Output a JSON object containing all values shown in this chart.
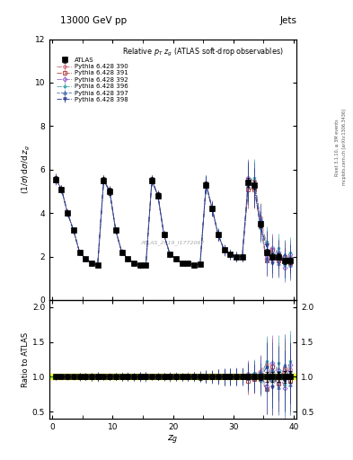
{
  "title_top": "13000 GeV pp",
  "title_right": "Jets",
  "plot_title": "Relative $p_{T}$ $z_{g}$ (ATLAS soft-drop observables)",
  "ylabel_main": "(1/σ) dσ/d z_g",
  "ylabel_ratio": "Ratio to ATLAS",
  "xlabel": "$z_g$",
  "right_label_top": "Rivet 3.1.10, ≥ 3M events",
  "right_label_bot": "mcplots.cern.ch [arXiv:1306.3436]",
  "watermark": "ATLAS_2019_I1772062",
  "main_ylim": [
    0,
    12
  ],
  "ratio_ylim": [
    0.4,
    2.1
  ],
  "xlim": [
    -0.5,
    40.5
  ],
  "xbins": [
    0.5,
    1.5,
    2.5,
    3.5,
    4.5,
    5.5,
    6.5,
    7.5,
    8.5,
    9.5,
    10.5,
    11.5,
    12.5,
    13.5,
    14.5,
    15.5,
    16.5,
    17.5,
    18.5,
    19.5,
    20.5,
    21.5,
    22.5,
    23.5,
    24.5,
    25.5,
    26.5,
    27.5,
    28.5,
    29.5,
    30.5,
    31.5,
    32.5,
    33.5,
    34.5,
    35.5,
    36.5,
    37.5,
    38.5,
    39.5
  ],
  "atlas_y": [
    5.55,
    5.1,
    4.0,
    3.2,
    2.2,
    1.9,
    1.7,
    1.6,
    5.5,
    5.0,
    3.2,
    2.2,
    1.9,
    1.7,
    1.6,
    1.6,
    5.5,
    4.8,
    3.0,
    2.1,
    1.9,
    1.7,
    1.7,
    1.6,
    1.65,
    5.3,
    4.2,
    3.0,
    2.3,
    2.1,
    2.0,
    2.0,
    5.4,
    5.3,
    3.5,
    2.2,
    2.0,
    2.0,
    1.8,
    1.8
  ],
  "atlas_yerr": [
    0.15,
    0.12,
    0.1,
    0.08,
    0.07,
    0.06,
    0.06,
    0.06,
    0.15,
    0.15,
    0.1,
    0.08,
    0.07,
    0.06,
    0.06,
    0.06,
    0.15,
    0.15,
    0.1,
    0.08,
    0.07,
    0.06,
    0.06,
    0.06,
    0.07,
    0.15,
    0.12,
    0.1,
    0.09,
    0.08,
    0.08,
    0.08,
    0.2,
    0.2,
    0.15,
    0.15,
    0.15,
    0.15,
    0.15,
    0.15
  ],
  "atlas_band": [
    0.05,
    0.05,
    0.04,
    0.03,
    0.02,
    0.02,
    0.02,
    0.02,
    0.05,
    0.05,
    0.04,
    0.03,
    0.02,
    0.02,
    0.02,
    0.02,
    0.05,
    0.05,
    0.04,
    0.03,
    0.02,
    0.02,
    0.02,
    0.02,
    0.02,
    0.05,
    0.04,
    0.03,
    0.02,
    0.02,
    0.02,
    0.02,
    0.05,
    0.05,
    0.04,
    0.04,
    0.04,
    0.04,
    0.04,
    0.04
  ],
  "pythia_configs": [
    {
      "label": "Pythia 6.428 390",
      "color": "#cc6677",
      "linestyle": "-.",
      "marker": "o"
    },
    {
      "label": "Pythia 6.428 391",
      "color": "#bb4444",
      "linestyle": "-.",
      "marker": "s"
    },
    {
      "label": "Pythia 6.428 392",
      "color": "#9966cc",
      "linestyle": "-.",
      "marker": "D"
    },
    {
      "label": "Pythia 6.428 396",
      "color": "#44aaaa",
      "linestyle": "-.",
      "marker": "*"
    },
    {
      "label": "Pythia 6.428 397",
      "color": "#4466aa",
      "linestyle": "--",
      "marker": "^"
    },
    {
      "label": "Pythia 6.428 398",
      "color": "#223388",
      "linestyle": "-.",
      "marker": "v"
    }
  ],
  "pythia_rel_offsets": [
    [
      1.005,
      1.003,
      0.998,
      0.995,
      1.004,
      0.997,
      1.008,
      1.003,
      1.006,
      1.004,
      1.003,
      0.996,
      1.008,
      1.004,
      0.996,
      1.008,
      1.006,
      1.004,
      1.003,
      0.99,
      1.005,
      0.994,
      1.011,
      1.006,
      1.012,
      1.01,
      1.01,
      1.007,
      0.991,
      0.995,
      1.005,
      1.01,
      1.028,
      1.038,
      1.086,
      1.182,
      0.95,
      0.9,
      1.056,
      1.111
    ],
    [
      1.006,
      1.004,
      0.998,
      1.003,
      0.996,
      1.005,
      0.991,
      0.994,
      1.004,
      1.006,
      0.997,
      1.005,
      0.995,
      1.006,
      0.994,
      1.006,
      1.004,
      1.006,
      0.997,
      1.005,
      0.995,
      1.006,
      0.994,
      1.006,
      1.006,
      1.008,
      0.993,
      1.003,
      0.996,
      1.005,
      0.995,
      1.005,
      0.944,
      0.962,
      0.971,
      0.818,
      1.15,
      0.9,
      1.111,
      0.944
    ],
    [
      0.996,
      0.998,
      1.003,
      1.006,
      0.995,
      1.006,
      0.988,
      1.006,
      0.996,
      0.998,
      1.003,
      1.009,
      0.995,
      1.006,
      0.988,
      1.006,
      0.996,
      0.998,
      1.003,
      1.01,
      0.995,
      1.006,
      0.988,
      1.006,
      0.994,
      0.994,
      1.005,
      0.997,
      1.009,
      0.995,
      1.01,
      0.995,
      1.037,
      0.981,
      1.043,
      0.864,
      1.2,
      1.1,
      0.833,
      1.167
    ],
    [
      1.002,
      0.996,
      1.005,
      0.997,
      1.009,
      0.995,
      1.006,
      0.988,
      1.002,
      0.996,
      1.005,
      0.995,
      1.011,
      0.994,
      1.006,
      0.988,
      1.002,
      0.996,
      1.007,
      0.995,
      1.011,
      0.994,
      1.006,
      0.988,
      0.988,
      1.004,
      0.998,
      1.007,
      0.996,
      1.01,
      0.995,
      1.005,
      1.019,
      1.057,
      0.943,
      1.227,
      0.95,
      1.2,
      0.889,
      1.222
    ],
    [
      0.998,
      1.004,
      0.995,
      1.003,
      0.991,
      1.005,
      0.994,
      1.013,
      0.998,
      1.004,
      0.995,
      1.005,
      0.989,
      1.006,
      0.994,
      1.013,
      0.998,
      1.004,
      0.993,
      1.005,
      0.989,
      1.006,
      0.994,
      1.013,
      1.012,
      0.996,
      1.002,
      0.993,
      1.004,
      0.99,
      1.005,
      0.995,
      0.981,
      1.019,
      1.071,
      0.818,
      1.1,
      0.85,
      1.167,
      0.889
    ],
    [
      1.002,
      0.998,
      1.003,
      0.997,
      1.005,
      0.997,
      1.006,
      0.994,
      1.002,
      0.998,
      1.003,
      0.995,
      1.006,
      0.994,
      1.006,
      0.994,
      1.002,
      0.998,
      1.003,
      0.995,
      1.006,
      0.994,
      1.006,
      0.994,
      0.994,
      1.002,
      0.998,
      1.003,
      0.996,
      1.005,
      0.995,
      1.005,
      1.009,
      0.972,
      0.971,
      1.136,
      0.85,
      1.05,
      0.944,
      1.056
    ]
  ]
}
